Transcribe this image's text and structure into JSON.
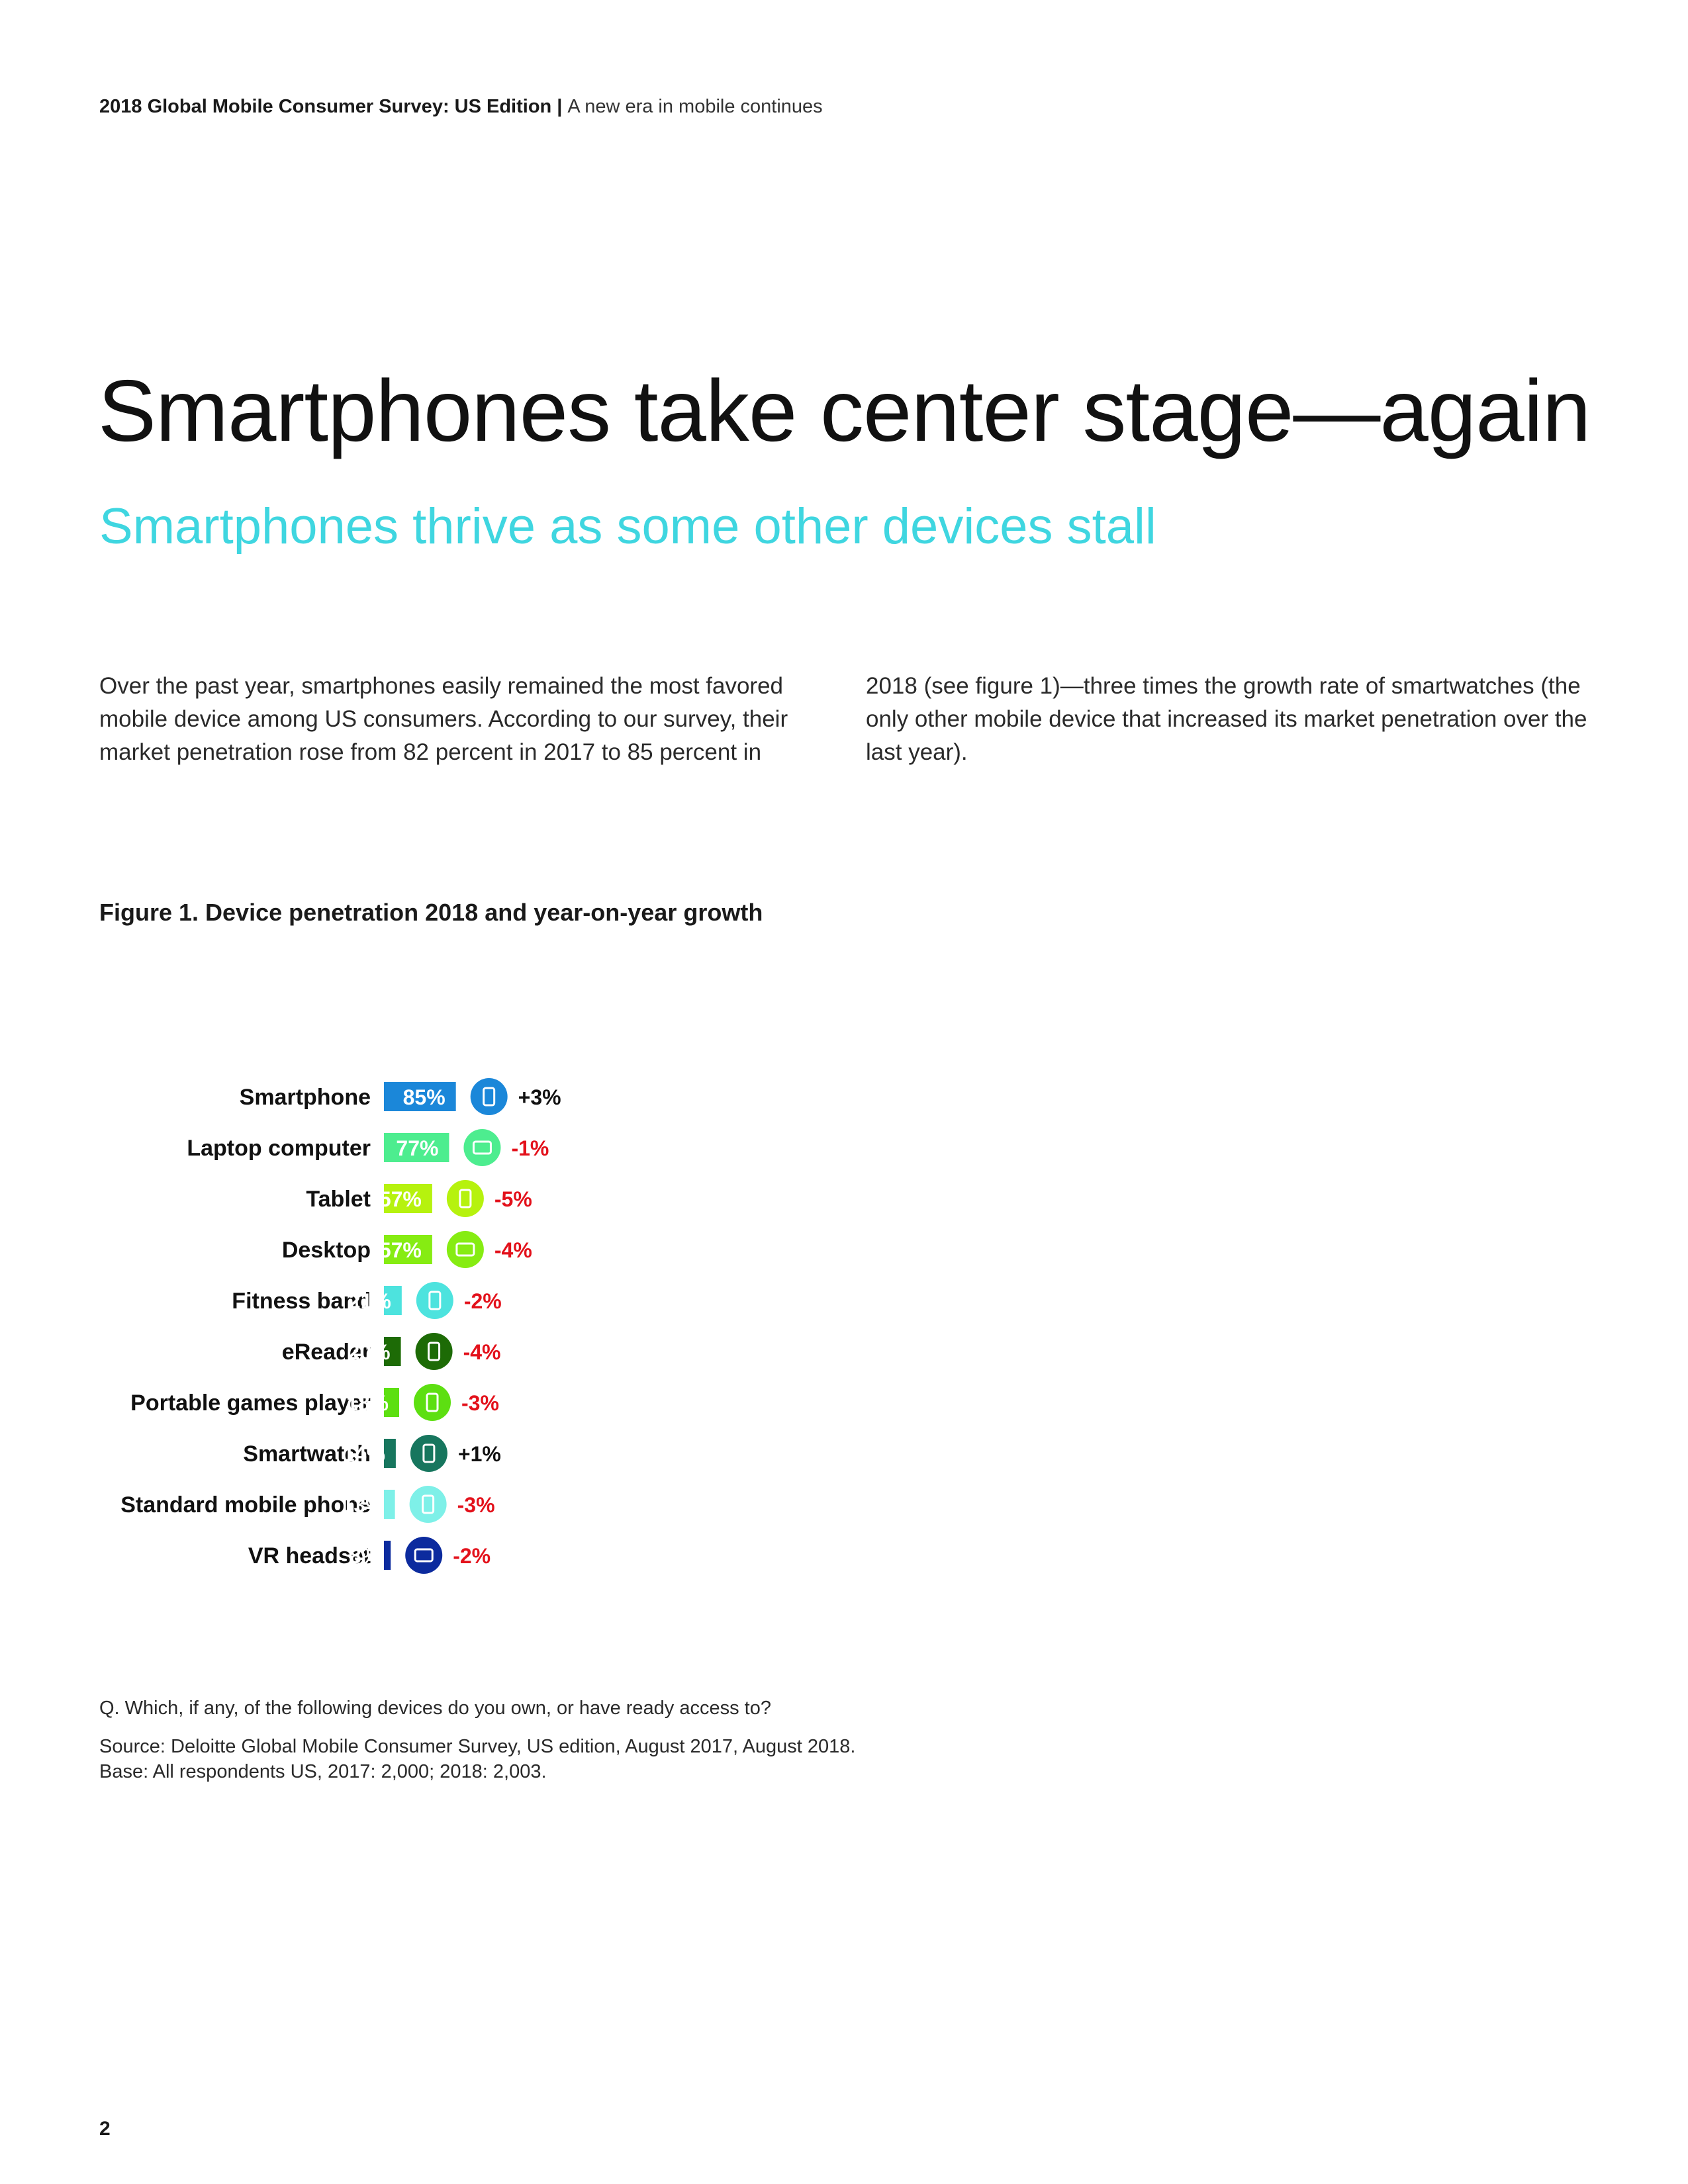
{
  "header": {
    "title": "2018 Global Mobile Consumer Survey: US Edition",
    "separator": "|",
    "subtitle": "A new era in mobile continues"
  },
  "title": "Smartphones take center stage—again",
  "subtitle": "Smartphones thrive as some other devices stall",
  "body": {
    "col1": "Over the past year, smartphones easily remained the most favored mobile device among US consumers. According to our survey, their market penetration rose from 82 percent in 2017 to 85 percent in",
    "col2": "2018 (see figure 1)—three times the growth rate of smartwatches (the only other mobile device that increased its market penetration over the last year)."
  },
  "figure_title": "Figure 1. Device penetration 2018 and year-on-year growth",
  "chart_data": {
    "type": "bar",
    "orientation": "horizontal",
    "title": "Figure 1. Device penetration 2018 and year-on-year growth",
    "unit": "%",
    "xlim": [
      0,
      100
    ],
    "grid": false,
    "categories": [
      "Smartphone",
      "Laptop computer",
      "Tablet",
      "Desktop",
      "Fitness band",
      "eReader",
      "Portable games player",
      "Smartwatch",
      "Standard mobile phone",
      "VR headset"
    ],
    "values": [
      85,
      77,
      57,
      57,
      21,
      20,
      18,
      14,
      13,
      8
    ],
    "value_labels": [
      "85%",
      "77%",
      "57%",
      "57%",
      "21%",
      "20%",
      "18%",
      "14%",
      "13%",
      "8%"
    ],
    "growth_labels": [
      "+3%",
      "-1%",
      "-5%",
      "-4%",
      "-2%",
      "-4%",
      "-3%",
      "+1%",
      "-3%",
      "-2%"
    ],
    "colors": [
      "#1b87d9",
      "#4ded8f",
      "#b6f20e",
      "#86ec12",
      "#4de3de",
      "#1d6b06",
      "#5ddf11",
      "#17765e",
      "#7ef0e8",
      "#0c2b9e"
    ],
    "icons": [
      "smartphone-icon",
      "laptop-icon",
      "tablet-icon",
      "desktop-icon",
      "fitness-band-icon",
      "ereader-icon",
      "games-player-icon",
      "smartwatch-icon",
      "mobile-phone-icon",
      "vr-headset-icon"
    ],
    "positive_color": "#111111",
    "negative_color": "#e3111b"
  },
  "footnotes": {
    "question": "Q. Which, if any, of the following devices do you own, or have ready access to?",
    "source": "Source: Deloitte Global Mobile Consumer Survey, US edition, August 2017, August 2018.",
    "base": "Base: All respondents US, 2017: 2,000; 2018: 2,003."
  },
  "page_number": "2"
}
